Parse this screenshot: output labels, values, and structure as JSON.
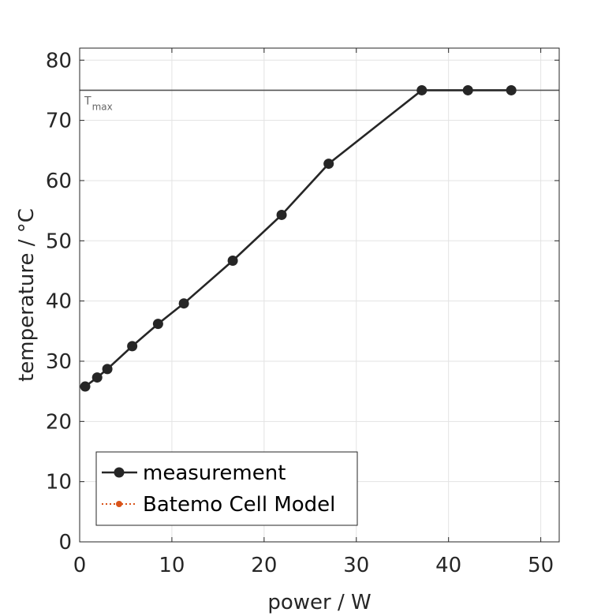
{
  "chart_data": {
    "type": "line",
    "xlabel": "power / W",
    "ylabel": "temperature / °C",
    "xlim": [
      0,
      52
    ],
    "ylim": [
      0,
      82
    ],
    "xticks": [
      0,
      10,
      20,
      30,
      40,
      50
    ],
    "yticks": [
      0,
      10,
      20,
      30,
      40,
      50,
      60,
      70,
      80
    ],
    "grid": true,
    "legend_position": "bottom-left",
    "series": [
      {
        "name": "measurement",
        "color": "#262626",
        "marker": "circle",
        "line": "solid",
        "x": [
          0.6,
          1.9,
          3.0,
          5.7,
          8.5,
          11.3,
          16.6,
          21.9,
          27.0,
          37.1,
          42.1,
          46.8
        ],
        "y": [
          25.8,
          27.3,
          28.7,
          32.5,
          36.2,
          39.6,
          46.7,
          54.3,
          62.8,
          75.0,
          75.0,
          75.0
        ]
      },
      {
        "name": "Batemo Cell Model",
        "color": "#D95319",
        "marker": "circle",
        "line": "dotted",
        "x": [],
        "y": []
      }
    ],
    "reference_line": {
      "y": 75,
      "label_main": "T",
      "label_sub": "max",
      "color": "#555555"
    }
  }
}
